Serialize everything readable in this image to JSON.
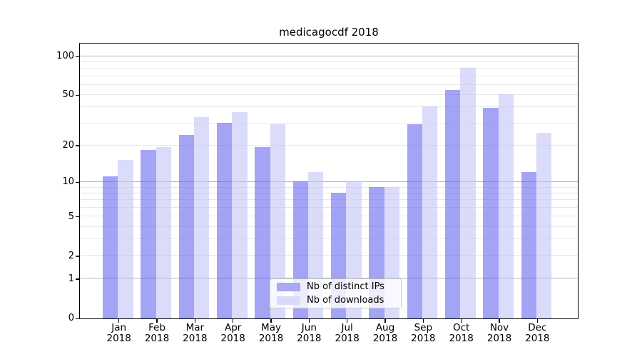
{
  "chart_data": {
    "type": "bar",
    "title": "medicagocdf 2018",
    "categories": [
      "Jan",
      "Feb",
      "Mar",
      "Apr",
      "May",
      "Jun",
      "Jul",
      "Aug",
      "Sep",
      "Oct",
      "Nov",
      "Dec"
    ],
    "category_year": "2018",
    "series": [
      {
        "name": "Nb of distinct IPs",
        "color": "rgba(103,103,240,0.6)",
        "legend_color": "#a9a9f0",
        "values": [
          11,
          18,
          24,
          30,
          19,
          10,
          8,
          9,
          29,
          54,
          39,
          12
        ]
      },
      {
        "name": "Nb of downloads",
        "color": "rgba(195,195,247,0.6)",
        "legend_color": "#dbdbf9",
        "values": [
          15,
          19,
          33,
          36,
          29,
          12,
          10,
          9,
          40,
          80,
          50,
          25
        ]
      }
    ],
    "yscale": "log10(1+x)",
    "ytick_labels": [
      0,
      1,
      2,
      5,
      10,
      20,
      50,
      100
    ],
    "major_gridlines": [
      1,
      10,
      100
    ],
    "minor_gridlines": [
      2,
      3,
      4,
      5,
      6,
      7,
      8,
      9,
      20,
      30,
      40,
      50,
      60,
      70,
      80,
      90
    ],
    "ylim": [
      0,
      125
    ],
    "grid": true,
    "legend_position": "lower-center"
  }
}
